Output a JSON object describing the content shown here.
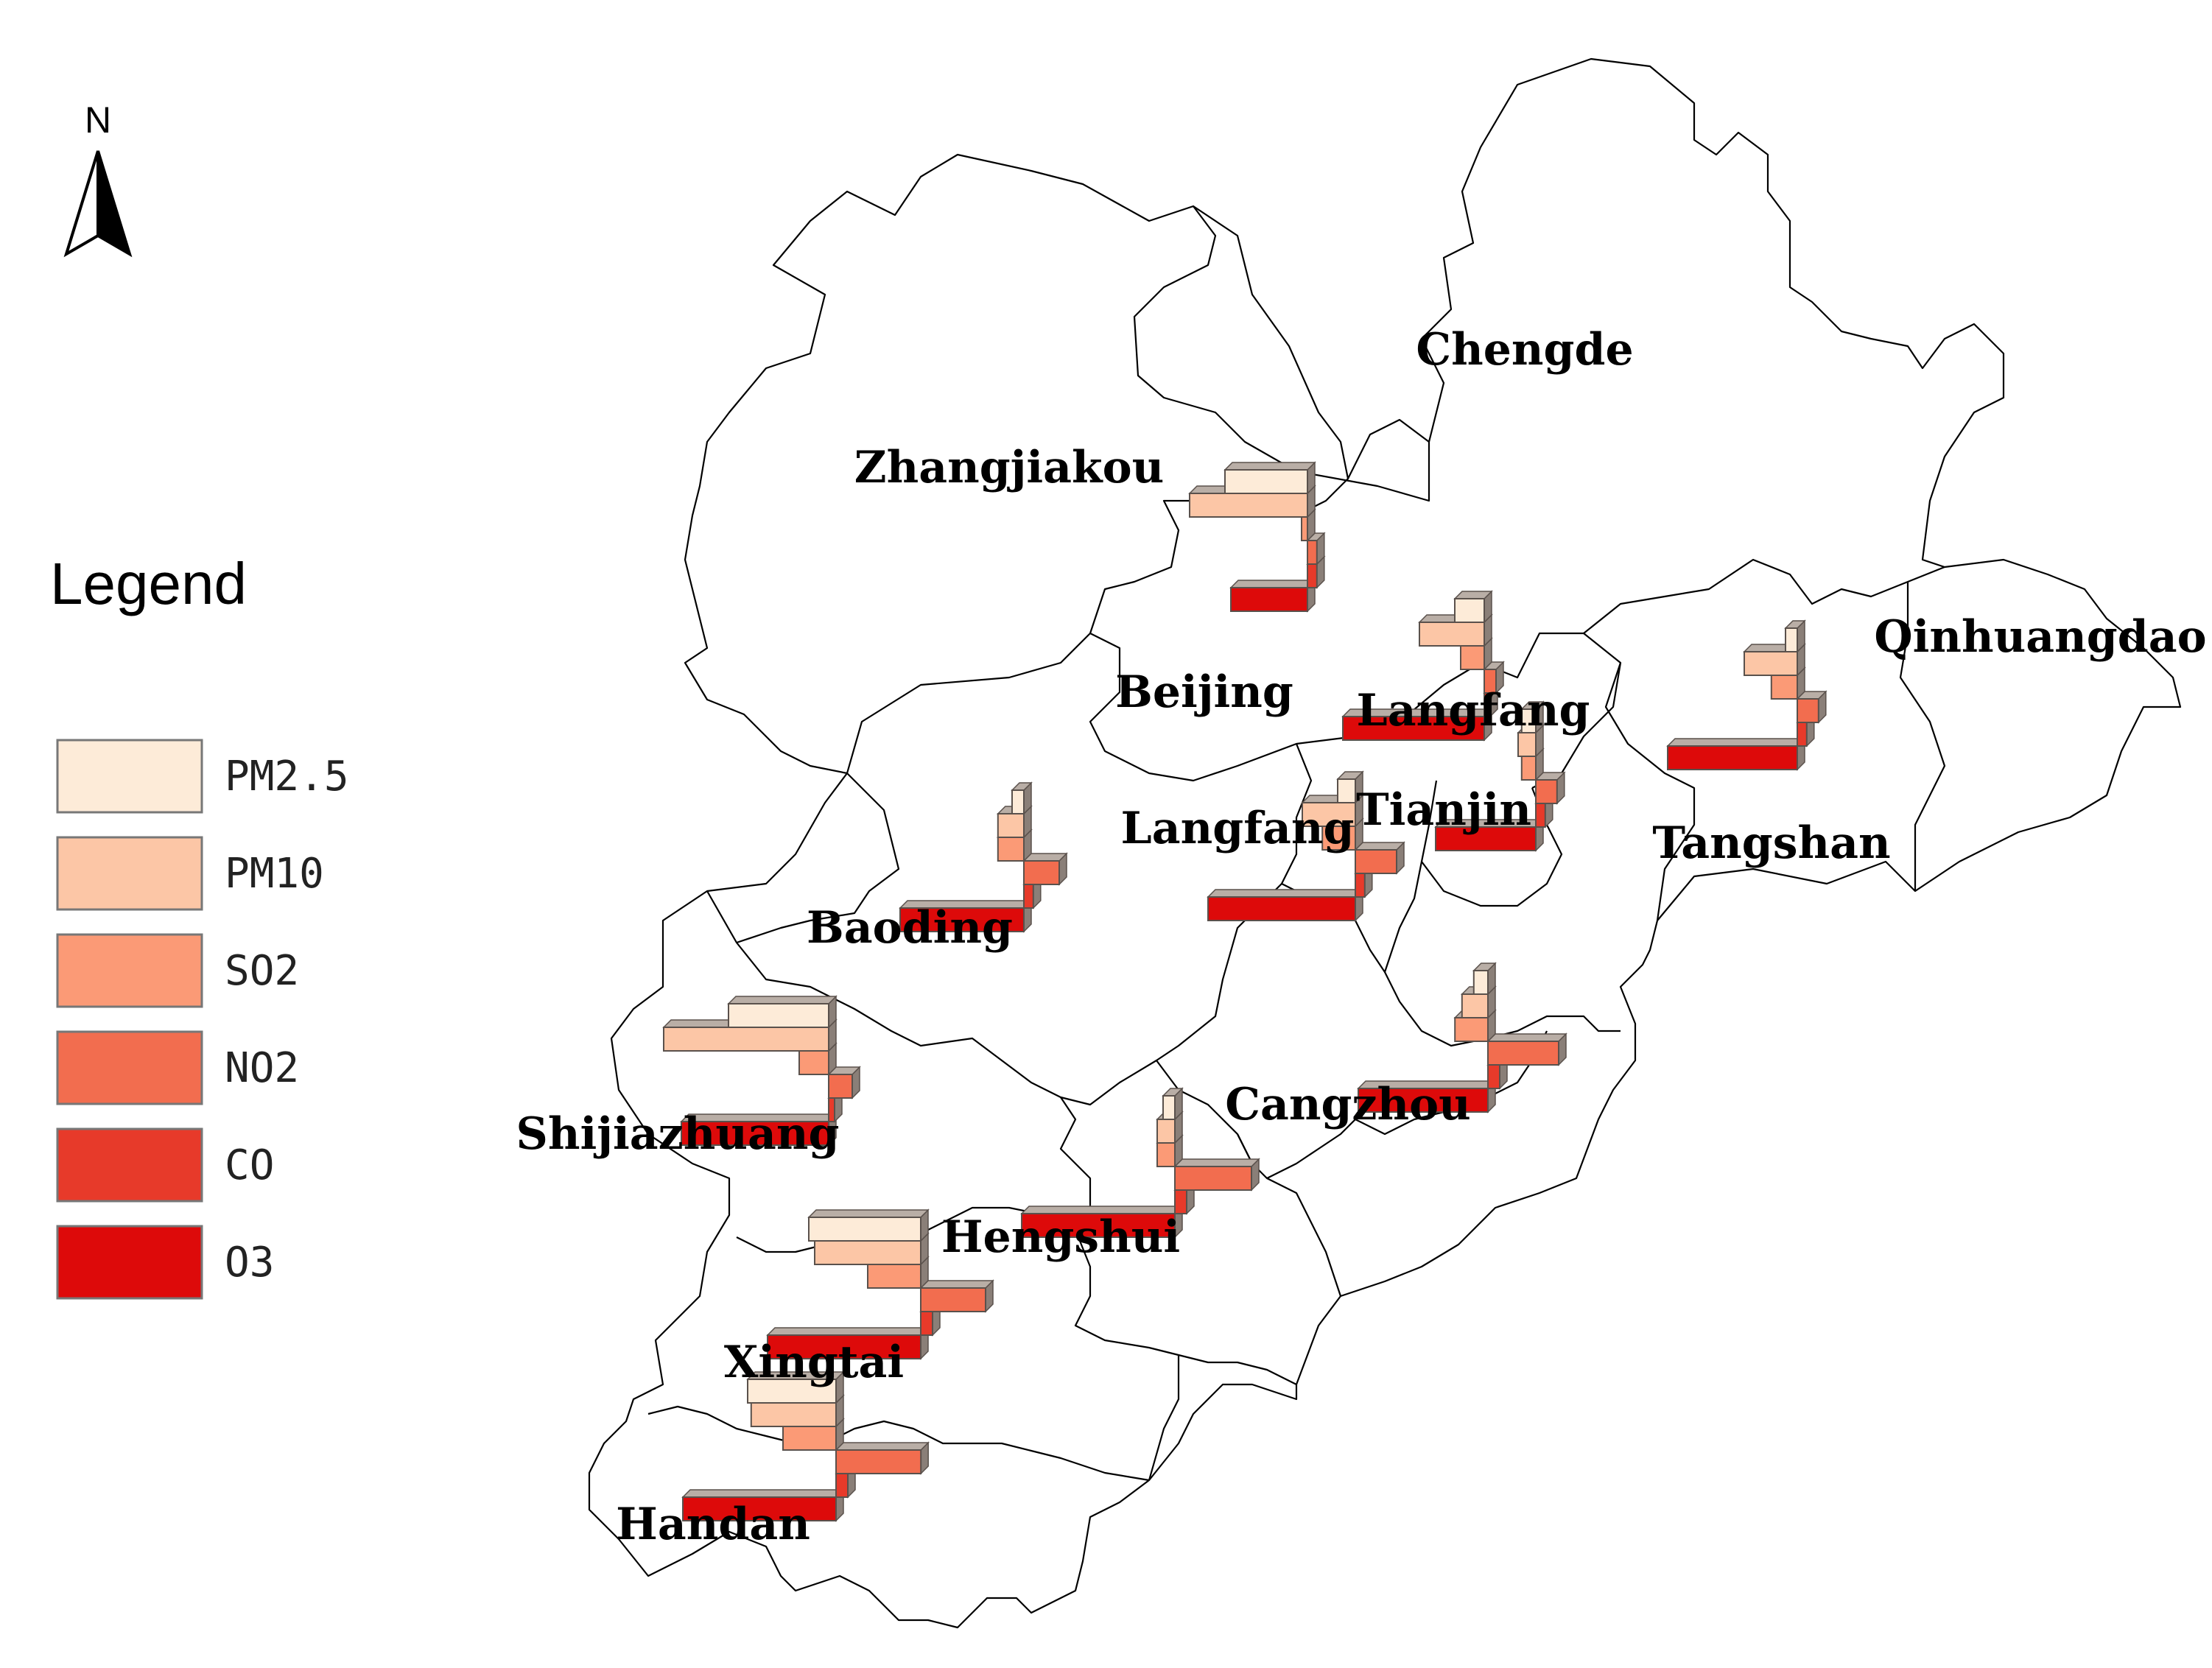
{
  "north_arrow": {
    "letter": "N",
    "icon": "north-arrow-icon"
  },
  "legend": {
    "title": "Legend",
    "items": [
      {
        "key": "pm25",
        "label": "PM2.5",
        "color": "#fdebd8"
      },
      {
        "key": "pm10",
        "label": "PM10",
        "color": "#fcc6a6"
      },
      {
        "key": "so2",
        "label": "SO2",
        "color": "#fb9a76"
      },
      {
        "key": "no2",
        "label": "NO2",
        "color": "#f26d4f"
      },
      {
        "key": "co",
        "label": "CO",
        "color": "#e73a2a"
      },
      {
        "key": "o3",
        "label": "O3",
        "color": "#dd0a0a"
      }
    ]
  },
  "regions": [
    {
      "name": "Zhangjiakou"
    },
    {
      "name": "Chengde"
    },
    {
      "name": "Qinhuangdao"
    },
    {
      "name": "Beijing",
      "pm25": 0.7,
      "pm10": 1.0,
      "so2": 0.05,
      "no2": 0.08,
      "co": 0.08,
      "o3": 0.65
    },
    {
      "name": "Langfang",
      "pm25": 0.25,
      "pm10": 0.55,
      "so2": 0.2,
      "no2": 0.1,
      "co": 0.05,
      "o3": 1.2
    },
    {
      "name": "Tangshan",
      "pm25": 0.1,
      "pm10": 0.45,
      "so2": 0.22,
      "no2": 0.18,
      "co": 0.08,
      "o3": 1.1
    },
    {
      "name": "Tianjin",
      "pm25": 0.12,
      "pm10": 0.15,
      "so2": 0.12,
      "no2": 0.18,
      "co": 0.08,
      "o3": 0.85
    },
    {
      "name": "Langfang",
      "pm25": 0.15,
      "pm10": 0.45,
      "so2": 0.28,
      "no2": 0.35,
      "co": 0.08,
      "o3": 1.25
    },
    {
      "name": "Baoding",
      "pm25": 0.1,
      "pm10": 0.22,
      "so2": 0.22,
      "no2": 0.3,
      "co": 0.08,
      "o3": 1.05
    },
    {
      "name": "Cangzhou",
      "pm25": 0.12,
      "pm10": 0.22,
      "so2": 0.28,
      "no2": 0.6,
      "co": 0.1,
      "o3": 1.1
    },
    {
      "name": "Shijiazhuang",
      "pm25": 0.85,
      "pm10": 1.4,
      "so2": 0.25,
      "no2": 0.2,
      "co": 0.05,
      "o3": 1.25
    },
    {
      "name": "Hengshui",
      "pm25": 0.1,
      "pm10": 0.15,
      "so2": 0.15,
      "no2": 0.65,
      "co": 0.1,
      "o3": 1.3
    },
    {
      "name": "Xingtai",
      "pm25": 0.95,
      "pm10": 0.9,
      "so2": 0.45,
      "no2": 0.55,
      "co": 0.1,
      "o3": 1.3
    },
    {
      "name": "Handan",
      "pm25": 0.75,
      "pm10": 0.72,
      "so2": 0.45,
      "no2": 0.72,
      "co": 0.1,
      "o3": 1.3
    }
  ]
}
